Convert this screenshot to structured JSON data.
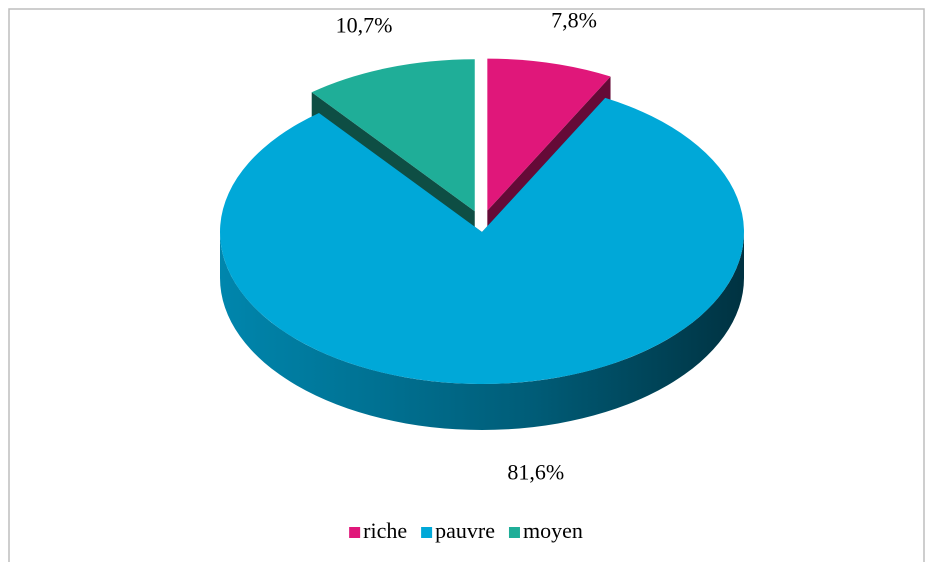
{
  "chart_data": {
    "type": "pie",
    "categories": [
      "riche",
      "pauvre",
      "moyen"
    ],
    "values": [
      7.8,
      81.6,
      10.7
    ],
    "value_labels": [
      "7,8%",
      "81,6%",
      "10,7%"
    ],
    "colors": [
      "#e0177a",
      "#00a8d8",
      "#1fae98"
    ],
    "legend": "bottom"
  }
}
